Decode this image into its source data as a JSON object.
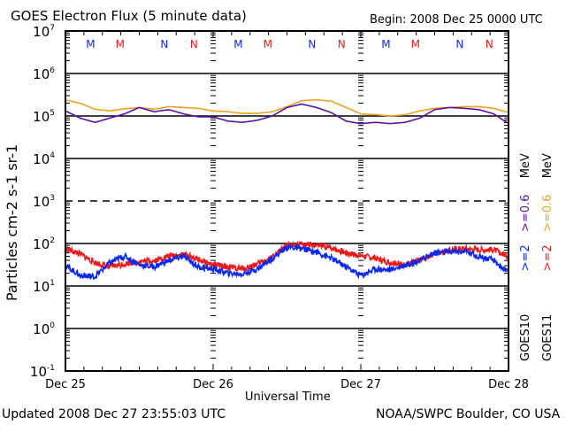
{
  "header": {
    "title": "GOES Electron Flux (5 minute data)",
    "begin": "Begin: 2008 Dec 25 0000 UTC"
  },
  "footer": {
    "updated": "Updated 2008 Dec 27 23:55:03 UTC",
    "credit": "NOAA/SWPC Boulder, CO USA"
  },
  "colors": {
    "goes10_ge06": "#5a10a8",
    "goes11_ge06": "#f0a020",
    "goes10_ge2": "#0a28f0",
    "goes11_ge2": "#f01818",
    "midnight_M": [
      "#0a28f0",
      "#f01818"
    ],
    "noon_N": [
      "#0a28f0",
      "#f01818"
    ]
  },
  "legend": {
    "goes10": {
      "sat": "GOES10",
      "e2": ">=2",
      "e06": ">=0.6",
      "unit": "MeV"
    },
    "goes11": {
      "sat": "GOES11",
      "e2": ">=2",
      "e06": ">=0.6",
      "unit": "MeV"
    }
  },
  "chart_data": {
    "type": "line",
    "title": "GOES Electron Flux (5 minute data)",
    "xlabel": "Universal Time",
    "ylabel": "Particles cm-2 s-1 sr-1",
    "yscale": "log",
    "ylim_log10": [
      -1,
      7
    ],
    "xlim_days": [
      0,
      3
    ],
    "x_ticks": [
      "Dec 25",
      "Dec 26",
      "Dec 27",
      "Dec 28"
    ],
    "y_tick_exponents": [
      7,
      6,
      5,
      4,
      3,
      2,
      1,
      0,
      -1
    ],
    "y_tick_base": "10",
    "gridlines_log10": [
      6,
      5,
      4,
      2,
      1,
      0
    ],
    "dashed_gridline_log10": 3,
    "markers": [
      {
        "label": "M",
        "day": 0.17,
        "color": "blue"
      },
      {
        "label": "M",
        "day": 0.37,
        "color": "red"
      },
      {
        "label": "N",
        "day": 0.67,
        "color": "blue"
      },
      {
        "label": "N",
        "day": 0.87,
        "color": "red"
      },
      {
        "label": "M",
        "day": 1.17,
        "color": "blue"
      },
      {
        "label": "M",
        "day": 1.37,
        "color": "red"
      },
      {
        "label": "N",
        "day": 1.67,
        "color": "blue"
      },
      {
        "label": "N",
        "day": 1.87,
        "color": "red"
      },
      {
        "label": "M",
        "day": 2.17,
        "color": "blue"
      },
      {
        "label": "M",
        "day": 2.37,
        "color": "red"
      },
      {
        "label": "N",
        "day": 2.67,
        "color": "blue"
      },
      {
        "label": "N",
        "day": 2.87,
        "color": "red"
      }
    ],
    "x_days": [
      0.0,
      0.1,
      0.2,
      0.3,
      0.4,
      0.5,
      0.6,
      0.7,
      0.8,
      0.9,
      1.0,
      1.1,
      1.2,
      1.3,
      1.4,
      1.5,
      1.6,
      1.7,
      1.8,
      1.9,
      2.0,
      2.1,
      2.2,
      2.3,
      2.4,
      2.5,
      2.6,
      2.7,
      2.8,
      2.9,
      3.0
    ],
    "series": [
      {
        "name": "GOES11 >=0.6 MeV",
        "color": "orange",
        "log10_values": [
          5.38,
          5.3,
          5.16,
          5.12,
          5.17,
          5.2,
          5.16,
          5.22,
          5.2,
          5.18,
          5.12,
          5.1,
          5.06,
          5.06,
          5.1,
          5.22,
          5.36,
          5.38,
          5.35,
          5.2,
          5.05,
          5.03,
          5.0,
          5.03,
          5.12,
          5.18,
          5.2,
          5.22,
          5.22,
          5.18,
          5.08
        ]
      },
      {
        "name": "GOES10 >=0.6 MeV",
        "color": "purple",
        "log10_values": [
          5.12,
          4.95,
          4.85,
          4.95,
          5.05,
          5.2,
          5.1,
          5.15,
          5.05,
          4.98,
          4.98,
          4.88,
          4.85,
          4.9,
          5.0,
          5.2,
          5.28,
          5.2,
          5.08,
          4.88,
          4.82,
          4.85,
          4.82,
          4.85,
          4.95,
          5.15,
          5.2,
          5.18,
          5.15,
          5.05,
          4.82
        ]
      },
      {
        "name": "GOES11 >=2 MeV",
        "color": "red",
        "log10_values": [
          1.88,
          1.75,
          1.55,
          1.45,
          1.52,
          1.58,
          1.6,
          1.7,
          1.75,
          1.62,
          1.5,
          1.45,
          1.4,
          1.52,
          1.68,
          1.95,
          1.98,
          1.95,
          1.9,
          1.78,
          1.72,
          1.65,
          1.55,
          1.5,
          1.6,
          1.78,
          1.85,
          1.88,
          1.85,
          1.85,
          1.7
        ]
      },
      {
        "name": "GOES10 >=2 MeV",
        "color": "blue",
        "log10_values": [
          1.48,
          1.25,
          1.22,
          1.55,
          1.7,
          1.5,
          1.45,
          1.6,
          1.7,
          1.45,
          1.4,
          1.3,
          1.28,
          1.4,
          1.65,
          1.92,
          1.88,
          1.8,
          1.65,
          1.45,
          1.25,
          1.4,
          1.38,
          1.5,
          1.6,
          1.78,
          1.8,
          1.82,
          1.7,
          1.6,
          1.3
        ]
      }
    ]
  }
}
